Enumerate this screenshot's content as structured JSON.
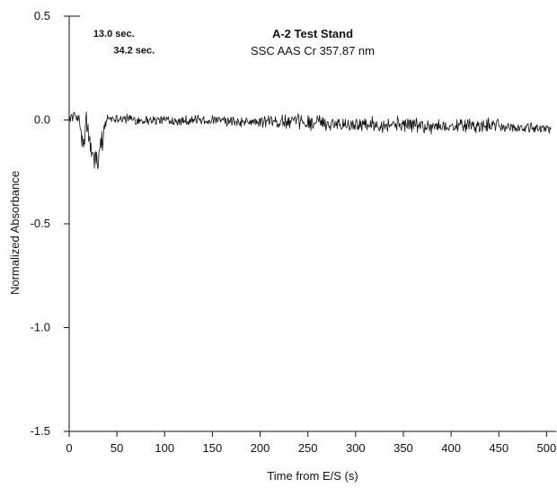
{
  "chart_data": {
    "type": "line",
    "title": "A-2 Test Stand",
    "subtitle": "SSC AAS Cr 357.87 nm",
    "xlabel": "Time from E/S (s)",
    "ylabel": "Normalized Absorbance",
    "xlim": [
      0,
      510
    ],
    "ylim": [
      -1.5,
      0.5
    ],
    "xticks": [
      0,
      50,
      100,
      150,
      200,
      250,
      300,
      350,
      400,
      450,
      500
    ],
    "xtick_labels": [
      "0",
      "50",
      "100",
      "150",
      "200",
      "250",
      "300",
      "350",
      "400",
      "450",
      "500"
    ],
    "yticks": [
      0.5,
      0.0,
      -0.5,
      -1.0,
      -1.5
    ],
    "ytick_labels": [
      "0.5",
      "0.0",
      "-0.5",
      "-1.0",
      "-1.5"
    ],
    "grid": false,
    "series_color": "#111111",
    "annotations": [
      {
        "text": "13.0 sec.",
        "x": 13.0,
        "y": 0.4
      },
      {
        "text": "34.2 sec.",
        "x": 34.2,
        "y": 0.32
      }
    ],
    "series": [
      {
        "x": [
          0,
          5,
          10,
          12,
          15,
          18,
          20,
          22,
          25,
          28,
          30,
          33,
          36,
          40,
          50,
          75,
          100,
          125,
          150,
          175,
          200,
          225,
          250,
          275,
          300,
          325,
          350,
          375,
          400,
          425,
          450,
          475,
          500,
          505
        ],
        "y": [
          0.01,
          0.02,
          0.01,
          -0.05,
          -0.15,
          0.0,
          -0.05,
          -0.12,
          -0.21,
          -0.15,
          -0.22,
          -0.12,
          -0.05,
          0.01,
          0.01,
          0.0,
          0.0,
          0.0,
          0.0,
          -0.01,
          -0.01,
          -0.01,
          -0.01,
          -0.02,
          -0.02,
          -0.02,
          -0.02,
          -0.03,
          -0.03,
          -0.03,
          -0.03,
          -0.04,
          -0.04,
          -0.04
        ],
        "y_noise": 0.02
      }
    ]
  }
}
